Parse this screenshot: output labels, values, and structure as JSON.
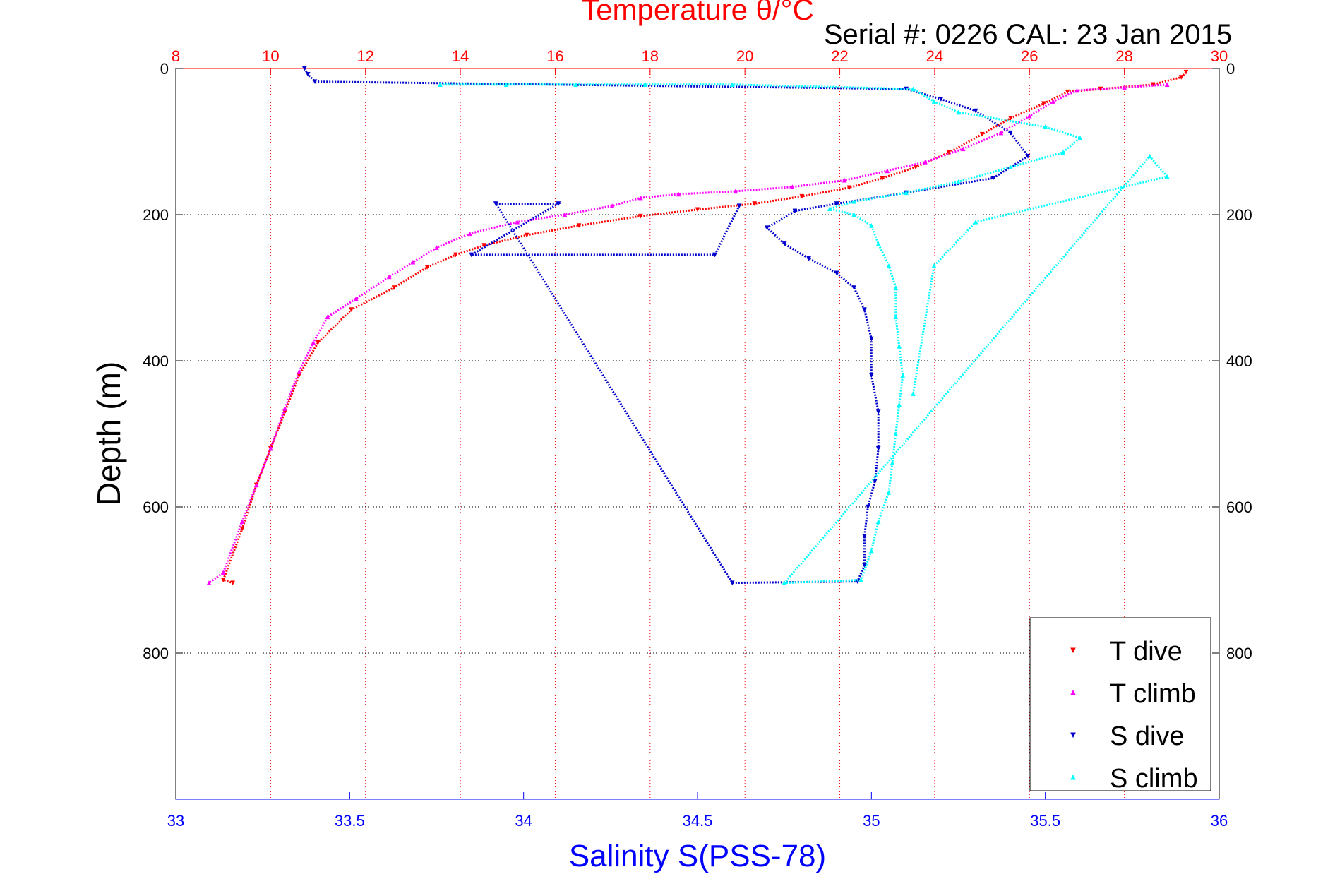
{
  "colors": {
    "temperature_axis": "#ff0000",
    "salinity_axis": "#0000ff",
    "depth_axis": "#000000",
    "t_dive": "#ff0000",
    "t_climb": "#ff00ff",
    "s_dive": "#0000cc",
    "s_climb": "#00ffff",
    "grid_temperature": "#ff0000",
    "grid_depth": "#000000"
  },
  "chart_data": {
    "type": "scatter",
    "title": "Temperature θ/°C",
    "subtitle": "Serial #: 0226  CAL: 23 Jan 2015",
    "xlabel": "Salinity S(PSS-78)",
    "x2label": "Temperature θ/°C",
    "ylabel": "Depth (m)",
    "xlim_salinity": [
      33,
      36
    ],
    "xlim_temperature": [
      8,
      30
    ],
    "ylim": [
      0,
      1000
    ],
    "y_reversed": true,
    "grid": true,
    "legend_position": "bottom-right",
    "salinity_ticks": [
      "33",
      "33.5",
      "34",
      "34.5",
      "35",
      "35.5",
      "36"
    ],
    "temperature_ticks": [
      "8",
      "10",
      "12",
      "14",
      "16",
      "18",
      "20",
      "22",
      "24",
      "26",
      "28",
      "30"
    ],
    "depth_ticks_left": [
      "0",
      "200",
      "400",
      "600",
      "800"
    ],
    "depth_ticks_right": [
      "0",
      "200",
      "400",
      "600",
      "800"
    ],
    "series": [
      {
        "name": "T dive",
        "axis": "temperature",
        "marker": "triangle-down",
        "points": [
          [
            29.3,
            5
          ],
          [
            29.2,
            12
          ],
          [
            28.6,
            22
          ],
          [
            27.5,
            28
          ],
          [
            26.8,
            32
          ],
          [
            26.3,
            48
          ],
          [
            25.6,
            68
          ],
          [
            25.0,
            90
          ],
          [
            24.3,
            115
          ],
          [
            23.6,
            135
          ],
          [
            22.9,
            150
          ],
          [
            22.2,
            163
          ],
          [
            21.2,
            175
          ],
          [
            20.2,
            185
          ],
          [
            19.0,
            193
          ],
          [
            17.8,
            202
          ],
          [
            16.5,
            215
          ],
          [
            15.4,
            228
          ],
          [
            14.5,
            242
          ],
          [
            13.9,
            255
          ],
          [
            13.3,
            272
          ],
          [
            12.6,
            300
          ],
          [
            11.7,
            330
          ],
          [
            11.0,
            375
          ],
          [
            10.6,
            420
          ],
          [
            10.3,
            470
          ],
          [
            10.0,
            520
          ],
          [
            9.7,
            570
          ],
          [
            9.4,
            630
          ],
          [
            9.0,
            700
          ],
          [
            9.2,
            704
          ]
        ]
      },
      {
        "name": "T climb",
        "axis": "temperature",
        "marker": "triangle-up",
        "points": [
          [
            28.9,
            22
          ],
          [
            28.0,
            26
          ],
          [
            27.0,
            30
          ],
          [
            26.5,
            45
          ],
          [
            26.0,
            65
          ],
          [
            25.4,
            88
          ],
          [
            24.6,
            110
          ],
          [
            23.8,
            128
          ],
          [
            23.0,
            140
          ],
          [
            22.1,
            153
          ],
          [
            21.0,
            162
          ],
          [
            19.8,
            168
          ],
          [
            18.6,
            172
          ],
          [
            17.8,
            177
          ],
          [
            17.2,
            188
          ],
          [
            16.2,
            200
          ],
          [
            15.2,
            210
          ],
          [
            14.2,
            226
          ],
          [
            13.5,
            245
          ],
          [
            13.0,
            265
          ],
          [
            12.5,
            285
          ],
          [
            11.8,
            315
          ],
          [
            11.2,
            340
          ],
          [
            10.9,
            375
          ],
          [
            10.6,
            415
          ],
          [
            10.3,
            465
          ],
          [
            10.0,
            520
          ],
          [
            9.7,
            570
          ],
          [
            9.4,
            620
          ],
          [
            9.0,
            690
          ],
          [
            8.7,
            704
          ]
        ]
      },
      {
        "name": "S dive",
        "axis": "salinity",
        "marker": "triangle-down",
        "points": [
          [
            33.37,
            0
          ],
          [
            33.38,
            8
          ],
          [
            33.4,
            18
          ],
          [
            35.1,
            28
          ],
          [
            35.2,
            42
          ],
          [
            35.3,
            58
          ],
          [
            35.4,
            88
          ],
          [
            35.45,
            120
          ],
          [
            35.35,
            150
          ],
          [
            35.1,
            170
          ],
          [
            34.9,
            185
          ],
          [
            34.78,
            195
          ],
          [
            34.7,
            218
          ],
          [
            34.75,
            240
          ],
          [
            34.82,
            260
          ],
          [
            34.9,
            280
          ],
          [
            34.95,
            300
          ],
          [
            34.98,
            330
          ],
          [
            35.0,
            370
          ],
          [
            35.0,
            420
          ],
          [
            35.02,
            470
          ],
          [
            35.02,
            520
          ],
          [
            35.01,
            565
          ],
          [
            34.99,
            600
          ],
          [
            34.98,
            640
          ],
          [
            34.98,
            680
          ],
          [
            34.96,
            702
          ],
          [
            34.6,
            704
          ],
          [
            33.92,
            185
          ],
          [
            34.1,
            185
          ],
          [
            33.85,
            255
          ],
          [
            34.55,
            255
          ],
          [
            34.62,
            188
          ]
        ]
      },
      {
        "name": "S climb",
        "axis": "salinity",
        "marker": "triangle-up",
        "points": [
          [
            33.76,
            22
          ],
          [
            33.95,
            22
          ],
          [
            34.15,
            22
          ],
          [
            34.35,
            22
          ],
          [
            34.6,
            22
          ],
          [
            35.12,
            28
          ],
          [
            35.18,
            45
          ],
          [
            35.25,
            60
          ],
          [
            35.5,
            80
          ],
          [
            35.6,
            95
          ],
          [
            35.55,
            115
          ],
          [
            35.4,
            135
          ],
          [
            35.25,
            155
          ],
          [
            35.1,
            170
          ],
          [
            34.95,
            182
          ],
          [
            34.88,
            192
          ],
          [
            34.95,
            200
          ],
          [
            35.0,
            215
          ],
          [
            35.02,
            240
          ],
          [
            35.05,
            270
          ],
          [
            35.07,
            300
          ],
          [
            35.07,
            340
          ],
          [
            35.08,
            380
          ],
          [
            35.09,
            420
          ],
          [
            35.08,
            460
          ],
          [
            35.07,
            500
          ],
          [
            35.06,
            540
          ],
          [
            35.05,
            580
          ],
          [
            35.02,
            620
          ],
          [
            35.0,
            660
          ],
          [
            34.97,
            700
          ],
          [
            34.75,
            704
          ],
          [
            35.8,
            120
          ],
          [
            35.85,
            148
          ],
          [
            35.3,
            210
          ],
          [
            35.18,
            270
          ],
          [
            35.12,
            445
          ]
        ]
      }
    ]
  },
  "legend": {
    "items": [
      "T dive",
      "T climb",
      "S dive",
      "S climb"
    ]
  }
}
